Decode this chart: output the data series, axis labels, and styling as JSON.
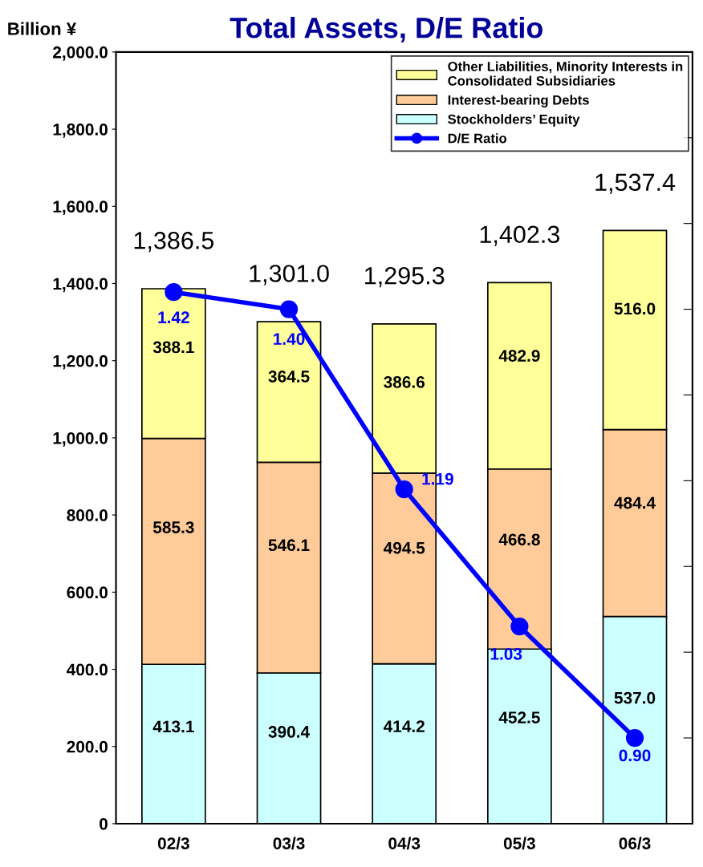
{
  "chart_data": {
    "type": "bar",
    "title": "Total Assets, D/E Ratio",
    "ylabel": "Billion ¥",
    "categories": [
      "02/3",
      "03/3",
      "04/3",
      "05/3",
      "06/3"
    ],
    "stacked": true,
    "series": [
      {
        "name": "Stockholders’ Equity",
        "color": "#ccffff",
        "values": [
          413.1,
          390.4,
          414.2,
          452.5,
          537.0
        ],
        "value_labels": [
          "413.1",
          "390.4",
          "414.2",
          "452.5",
          "537.0"
        ]
      },
      {
        "name": "Interest-bearing Debts",
        "color": "#ffcc99",
        "values": [
          585.3,
          546.1,
          494.5,
          466.8,
          484.4
        ],
        "value_labels": [
          "585.3",
          "546.1",
          "494.5",
          "466.8",
          "484.4"
        ]
      },
      {
        "name": "Other Liabilities, Minority Interests in Consolidated Subsidiaries",
        "color": "#ffff99",
        "values": [
          388.1,
          364.5,
          386.6,
          482.9,
          516.0
        ],
        "value_labels": [
          "388.1",
          "364.5",
          "386.6",
          "482.9",
          "516.0"
        ]
      },
      {
        "name": "D/E Ratio",
        "type": "line",
        "axis": "y2",
        "color": "#0000ff",
        "marker": "circle",
        "values": [
          1.42,
          1.4,
          1.19,
          1.03,
          0.9
        ],
        "value_labels": [
          "1.42",
          "1.40",
          "1.19",
          "1.03",
          "0.90"
        ]
      }
    ],
    "totals": [
      "1,386.5",
      "1,301.0",
      "1,295.3",
      "1,402.3",
      "1,537.4"
    ],
    "data_labels": true,
    "ylim": [
      0,
      2000
    ],
    "yticks": [
      {
        "value": 0,
        "label": "0"
      },
      {
        "value": 200,
        "label": "200.0"
      },
      {
        "value": 400,
        "label": "400.0"
      },
      {
        "value": 600,
        "label": "600.0"
      },
      {
        "value": 800,
        "label": "800.0"
      },
      {
        "value": 1000,
        "label": "1,000.0"
      },
      {
        "value": 1200,
        "label": "1,200.0"
      },
      {
        "value": 1400,
        "label": "1,400.0"
      },
      {
        "value": 1600,
        "label": "1,600.0"
      },
      {
        "value": 1800,
        "label": "1,800.0"
      },
      {
        "value": 2000,
        "label": "2,000.0"
      }
    ],
    "y2lim": [
      0.8,
      1.7
    ],
    "y2ticks": [
      {
        "value": 0.8,
        "label": null
      },
      {
        "value": 0.9,
        "label": null
      },
      {
        "value": 1.0,
        "label": null
      },
      {
        "value": 1.1,
        "label": null
      },
      {
        "value": 1.2,
        "label": null
      },
      {
        "value": 1.3,
        "label": null
      },
      {
        "value": 1.4,
        "label": null
      },
      {
        "value": 1.5,
        "label": null
      },
      {
        "value": 1.6,
        "label": null
      },
      {
        "value": 1.7,
        "label": null
      }
    ],
    "grid": false,
    "legend": "top right"
  }
}
